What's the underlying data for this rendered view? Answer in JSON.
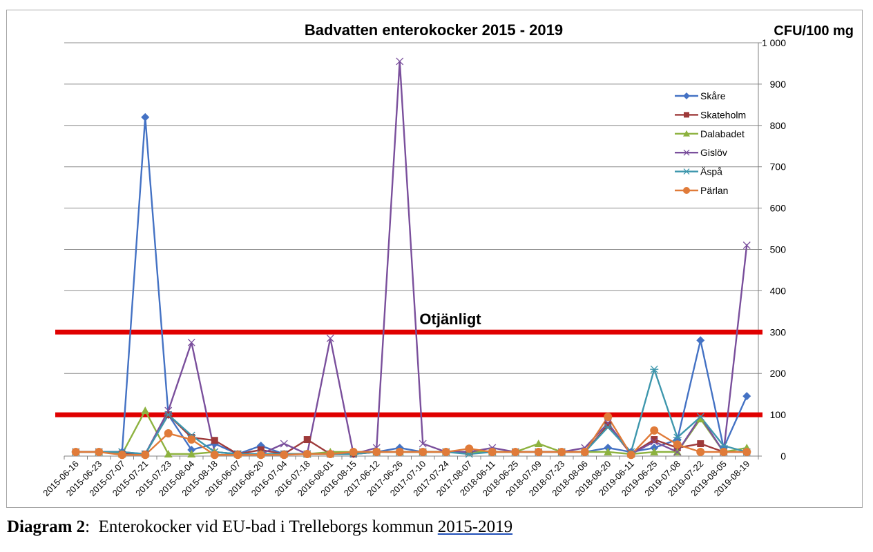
{
  "caption": {
    "label": "Diagram 2",
    "separator": ":",
    "text": "  Enterokocker vid EU-bad i Trelleborgs kommun ",
    "years": "2015-2019"
  },
  "chart_data": {
    "type": "line",
    "title": "Badvatten enterokocker 2015 - 2019",
    "ylabel": "CFU/100 mg",
    "xlabel": "",
    "y_axis_side": "right",
    "ylim": [
      0,
      1000
    ],
    "y_ticks": [
      0,
      100,
      200,
      300,
      400,
      500,
      600,
      700,
      800,
      900,
      1000
    ],
    "y_tick_labels": [
      "0",
      "100",
      "200",
      "300",
      "400",
      "500",
      "600",
      "700",
      "800",
      "900",
      "1 000"
    ],
    "grid": true,
    "legend_position": "right",
    "categories": [
      "2015-06-16",
      "2015-06-23",
      "2015-07-07",
      "2015-07-21",
      "2015-07-23",
      "2015-08-04",
      "2015-08-18",
      "2016-06-07",
      "2016-06-20",
      "2016-07-04",
      "2016-07-18",
      "2016-08-01",
      "2016-08-15",
      "2017-06-12",
      "2017-06-26",
      "2017-07-10",
      "2017-07-24",
      "2017-08-07",
      "2018-06-11",
      "2018-06-25",
      "2018-07-09",
      "2018-07-23",
      "2018-08-06",
      "2018-08-20",
      "2019-06-11",
      "2019-06-25",
      "2019-07-08",
      "2019-07-22",
      "2019-08-05",
      "2019-08-19"
    ],
    "series": [
      {
        "name": "Skåre",
        "color": "#4472c4",
        "marker": "diamond",
        "values": [
          10,
          10,
          10,
          820,
          100,
          15,
          30,
          5,
          25,
          5,
          5,
          5,
          5,
          10,
          20,
          10,
          10,
          10,
          10,
          10,
          10,
          10,
          10,
          20,
          10,
          20,
          40,
          280,
          20,
          145
        ]
      },
      {
        "name": "Skateholm",
        "color": "#9e3a3a",
        "marker": "square",
        "values": [
          10,
          10,
          5,
          5,
          100,
          45,
          38,
          5,
          15,
          5,
          40,
          5,
          5,
          10,
          10,
          10,
          10,
          10,
          10,
          10,
          10,
          10,
          10,
          75,
          5,
          40,
          20,
          30,
          10,
          10
        ]
      },
      {
        "name": "Dalabadet",
        "color": "#8db23f",
        "marker": "triangle",
        "values": [
          10,
          10,
          5,
          110,
          5,
          5,
          10,
          5,
          5,
          5,
          5,
          10,
          10,
          10,
          10,
          10,
          10,
          10,
          10,
          10,
          30,
          10,
          10,
          10,
          5,
          10,
          10,
          90,
          10,
          20
        ]
      },
      {
        "name": "Gislöv",
        "color": "#7a4f9c",
        "marker": "x",
        "values": [
          10,
          10,
          10,
          5,
          110,
          275,
          10,
          5,
          5,
          30,
          5,
          285,
          5,
          20,
          955,
          30,
          10,
          10,
          20,
          10,
          10,
          10,
          20,
          80,
          5,
          35,
          10,
          95,
          10,
          510
        ]
      },
      {
        "name": "Äspå",
        "color": "#3e97ad",
        "marker": "star",
        "values": [
          10,
          10,
          10,
          5,
          100,
          50,
          10,
          5,
          5,
          5,
          5,
          5,
          5,
          10,
          10,
          10,
          10,
          5,
          10,
          10,
          10,
          10,
          10,
          70,
          10,
          210,
          45,
          95,
          25,
          10
        ]
      },
      {
        "name": "Pärlan",
        "color": "#e07b39",
        "marker": "circle",
        "values": [
          10,
          10,
          3,
          3,
          55,
          40,
          3,
          3,
          3,
          3,
          5,
          5,
          10,
          10,
          10,
          10,
          10,
          18,
          10,
          10,
          10,
          10,
          10,
          95,
          3,
          62,
          28,
          10,
          10,
          10
        ]
      }
    ],
    "threshold_lines": [
      {
        "value": 300,
        "color": "#e00000"
      },
      {
        "value": 100,
        "color": "#e00000"
      }
    ],
    "annotations": [
      {
        "text": "Otjänligt",
        "at_value": 300
      }
    ]
  }
}
